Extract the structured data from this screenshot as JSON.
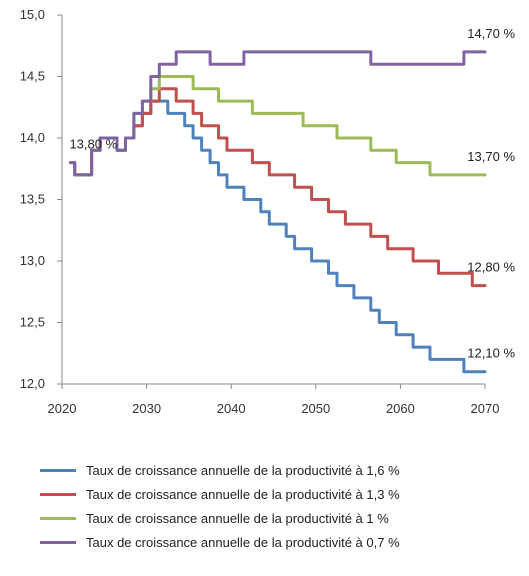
{
  "chart_data": {
    "type": "line",
    "title": "",
    "xlabel": "",
    "ylabel": "",
    "xlim": [
      2020,
      2070
    ],
    "ylim": [
      12.0,
      15.0
    ],
    "x_ticks": [
      "2020",
      "2030",
      "2040",
      "2050",
      "2060",
      "2070"
    ],
    "y_ticks": [
      "12,0",
      "12,5",
      "13,0",
      "13,5",
      "14,0",
      "14,5",
      "15,0"
    ],
    "grid": false,
    "legend_position": "bottom",
    "series": [
      {
        "name": "Taux de croissance annuelle  de la productivité à 1,6 %",
        "color": "#4F81BD",
        "x": [
          2021,
          2022,
          2023,
          2024,
          2025,
          2026,
          2027,
          2028,
          2029,
          2030,
          2031,
          2032,
          2033,
          2034,
          2035,
          2036,
          2037,
          2038,
          2039,
          2040,
          2041,
          2042,
          2043,
          2044,
          2045,
          2046,
          2047,
          2048,
          2049,
          2050,
          2051,
          2052,
          2053,
          2054,
          2055,
          2056,
          2057,
          2058,
          2059,
          2060,
          2061,
          2062,
          2063,
          2064,
          2065,
          2066,
          2067,
          2068,
          2069,
          2070
        ],
        "y": [
          13.8,
          13.7,
          13.7,
          13.9,
          14.0,
          14.0,
          13.9,
          14.0,
          14.1,
          14.2,
          14.3,
          14.3,
          14.2,
          14.2,
          14.1,
          14.0,
          13.9,
          13.8,
          13.7,
          13.6,
          13.6,
          13.5,
          13.5,
          13.4,
          13.3,
          13.3,
          13.2,
          13.1,
          13.1,
          13.0,
          13.0,
          12.9,
          12.8,
          12.8,
          12.7,
          12.7,
          12.6,
          12.5,
          12.5,
          12.4,
          12.4,
          12.3,
          12.3,
          12.2,
          12.2,
          12.2,
          12.2,
          12.1,
          12.1,
          12.1
        ]
      },
      {
        "name": "Taux de croissance annuelle  de la productivité à 1,3 %",
        "color": "#C0504D",
        "x": [
          2021,
          2022,
          2023,
          2024,
          2025,
          2026,
          2027,
          2028,
          2029,
          2030,
          2031,
          2032,
          2033,
          2034,
          2035,
          2036,
          2037,
          2038,
          2039,
          2040,
          2041,
          2042,
          2043,
          2044,
          2045,
          2046,
          2047,
          2048,
          2049,
          2050,
          2051,
          2052,
          2053,
          2054,
          2055,
          2056,
          2057,
          2058,
          2059,
          2060,
          2061,
          2062,
          2063,
          2064,
          2065,
          2066,
          2067,
          2068,
          2069,
          2070
        ],
        "y": [
          13.8,
          13.7,
          13.7,
          13.9,
          14.0,
          14.0,
          13.9,
          14.0,
          14.1,
          14.2,
          14.3,
          14.4,
          14.4,
          14.3,
          14.3,
          14.2,
          14.1,
          14.1,
          14.0,
          13.9,
          13.9,
          13.9,
          13.8,
          13.8,
          13.7,
          13.7,
          13.7,
          13.6,
          13.6,
          13.5,
          13.5,
          13.4,
          13.4,
          13.3,
          13.3,
          13.3,
          13.2,
          13.2,
          13.1,
          13.1,
          13.1,
          13.0,
          13.0,
          13.0,
          12.9,
          12.9,
          12.9,
          12.9,
          12.8,
          12.8
        ]
      },
      {
        "name": "Taux de croissance annuelle  de la productivité à 1 %",
        "color": "#9BBB59",
        "x": [
          2021,
          2022,
          2023,
          2024,
          2025,
          2026,
          2027,
          2028,
          2029,
          2030,
          2031,
          2032,
          2033,
          2034,
          2035,
          2036,
          2037,
          2038,
          2039,
          2040,
          2041,
          2042,
          2043,
          2044,
          2045,
          2046,
          2047,
          2048,
          2049,
          2050,
          2051,
          2052,
          2053,
          2054,
          2055,
          2056,
          2057,
          2058,
          2059,
          2060,
          2061,
          2062,
          2063,
          2064,
          2065,
          2066,
          2067,
          2068,
          2069,
          2070
        ],
        "y": [
          13.8,
          13.7,
          13.7,
          13.9,
          14.0,
          14.0,
          13.9,
          14.0,
          14.2,
          14.3,
          14.4,
          14.5,
          14.5,
          14.5,
          14.5,
          14.4,
          14.4,
          14.4,
          14.3,
          14.3,
          14.3,
          14.3,
          14.2,
          14.2,
          14.2,
          14.2,
          14.2,
          14.2,
          14.1,
          14.1,
          14.1,
          14.1,
          14.0,
          14.0,
          14.0,
          14.0,
          13.9,
          13.9,
          13.9,
          13.8,
          13.8,
          13.8,
          13.8,
          13.7,
          13.7,
          13.7,
          13.7,
          13.7,
          13.7,
          13.7
        ]
      },
      {
        "name": "Taux de croissance annuelle  de la productivité à 0,7 %",
        "color": "#8064A2",
        "x": [
          2021,
          2022,
          2023,
          2024,
          2025,
          2026,
          2027,
          2028,
          2029,
          2030,
          2031,
          2032,
          2033,
          2034,
          2035,
          2036,
          2037,
          2038,
          2039,
          2040,
          2041,
          2042,
          2043,
          2044,
          2045,
          2046,
          2047,
          2048,
          2049,
          2050,
          2051,
          2052,
          2053,
          2054,
          2055,
          2056,
          2057,
          2058,
          2059,
          2060,
          2061,
          2062,
          2063,
          2064,
          2065,
          2066,
          2067,
          2068,
          2069,
          2070
        ],
        "y": [
          13.8,
          13.7,
          13.7,
          13.9,
          14.0,
          14.0,
          13.9,
          14.0,
          14.2,
          14.3,
          14.5,
          14.6,
          14.6,
          14.7,
          14.7,
          14.7,
          14.7,
          14.6,
          14.6,
          14.6,
          14.6,
          14.7,
          14.7,
          14.7,
          14.7,
          14.7,
          14.7,
          14.7,
          14.7,
          14.7,
          14.7,
          14.7,
          14.7,
          14.7,
          14.7,
          14.7,
          14.6,
          14.6,
          14.6,
          14.6,
          14.6,
          14.6,
          14.6,
          14.6,
          14.6,
          14.6,
          14.6,
          14.7,
          14.7,
          14.7
        ]
      }
    ],
    "annotations": [
      {
        "text": "13,80 %",
        "series": 0,
        "x": 2021,
        "anchor": "start"
      },
      {
        "text": "14,70 %",
        "series": 3,
        "x": 2070,
        "anchor": "end"
      },
      {
        "text": "13,70 %",
        "series": 2,
        "x": 2070,
        "anchor": "end"
      },
      {
        "text": "12,80 %",
        "series": 1,
        "x": 2070,
        "anchor": "end"
      },
      {
        "text": "12,10 %",
        "series": 0,
        "x": 2070,
        "anchor": "end"
      }
    ]
  }
}
